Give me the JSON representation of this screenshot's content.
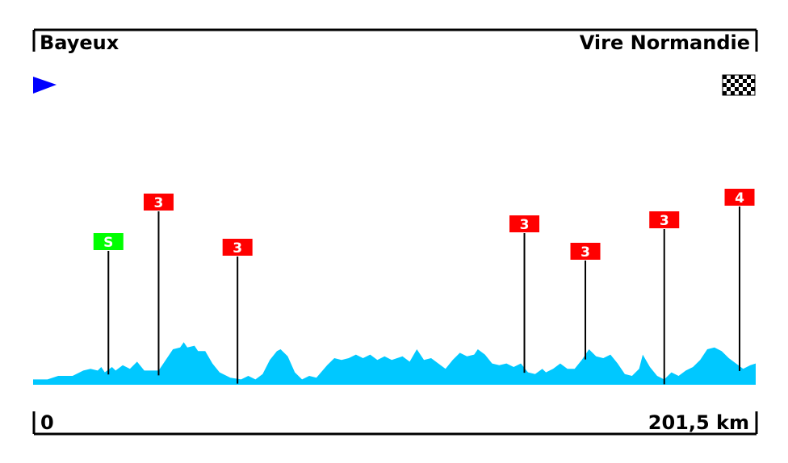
{
  "header": {
    "start_city": "Bayeux",
    "finish_city": "Vire Normandie"
  },
  "footer": {
    "start_km": "0",
    "end_km": "201,5 km"
  },
  "icons": {
    "start": "start-flag-icon",
    "finish": "checkered-flag-icon"
  },
  "colors": {
    "profile_fill": "#00c8ff",
    "climb_badge": "#ff0000",
    "sprint_badge": "#00ff00",
    "start_flag": "#0000ff"
  },
  "chart_data": {
    "type": "area",
    "xlim": [
      0,
      201.5
    ],
    "distance_km": 201.5,
    "profile": [
      [
        0,
        0.03
      ],
      [
        4,
        0.03
      ],
      [
        7,
        0.05
      ],
      [
        11,
        0.05
      ],
      [
        14,
        0.08
      ],
      [
        16,
        0.09
      ],
      [
        18,
        0.08
      ],
      [
        19,
        0.1
      ],
      [
        20,
        0.07
      ],
      [
        22,
        0.1
      ],
      [
        23,
        0.08
      ],
      [
        25,
        0.11
      ],
      [
        27,
        0.09
      ],
      [
        29,
        0.13
      ],
      [
        31,
        0.08
      ],
      [
        33,
        0.08
      ],
      [
        35,
        0.08
      ],
      [
        37,
        0.14
      ],
      [
        39,
        0.2
      ],
      [
        41,
        0.21
      ],
      [
        42,
        0.24
      ],
      [
        43,
        0.21
      ],
      [
        45,
        0.22
      ],
      [
        46,
        0.19
      ],
      [
        48,
        0.19
      ],
      [
        50,
        0.12
      ],
      [
        52,
        0.07
      ],
      [
        55,
        0.04
      ],
      [
        58,
        0.03
      ],
      [
        60,
        0.05
      ],
      [
        62,
        0.03
      ],
      [
        64,
        0.06
      ],
      [
        66,
        0.14
      ],
      [
        68,
        0.19
      ],
      [
        69,
        0.2
      ],
      [
        71,
        0.16
      ],
      [
        73,
        0.07
      ],
      [
        75,
        0.03
      ],
      [
        77,
        0.05
      ],
      [
        79,
        0.04
      ],
      [
        82,
        0.11
      ],
      [
        84,
        0.15
      ],
      [
        86,
        0.14
      ],
      [
        88,
        0.15
      ],
      [
        90,
        0.17
      ],
      [
        92,
        0.15
      ],
      [
        94,
        0.17
      ],
      [
        96,
        0.14
      ],
      [
        98,
        0.16
      ],
      [
        100,
        0.14
      ],
      [
        103,
        0.16
      ],
      [
        105,
        0.13
      ],
      [
        107,
        0.2
      ],
      [
        109,
        0.14
      ],
      [
        111,
        0.15
      ],
      [
        113,
        0.12
      ],
      [
        115,
        0.09
      ],
      [
        117,
        0.14
      ],
      [
        119,
        0.18
      ],
      [
        121,
        0.16
      ],
      [
        123,
        0.17
      ],
      [
        124,
        0.2
      ],
      [
        126,
        0.17
      ],
      [
        128,
        0.12
      ],
      [
        130,
        0.11
      ],
      [
        132,
        0.12
      ],
      [
        134,
        0.1
      ],
      [
        136,
        0.12
      ],
      [
        138,
        0.07
      ],
      [
        140,
        0.06
      ],
      [
        142,
        0.09
      ],
      [
        143,
        0.07
      ],
      [
        145,
        0.09
      ],
      [
        147,
        0.12
      ],
      [
        149,
        0.09
      ],
      [
        151,
        0.09
      ],
      [
        153,
        0.14
      ],
      [
        155,
        0.2
      ],
      [
        157,
        0.16
      ],
      [
        159,
        0.15
      ],
      [
        161,
        0.17
      ],
      [
        163,
        0.12
      ],
      [
        165,
        0.06
      ],
      [
        167,
        0.05
      ],
      [
        169,
        0.09
      ],
      [
        170,
        0.17
      ],
      [
        172,
        0.1
      ],
      [
        174,
        0.05
      ],
      [
        176,
        0.03
      ],
      [
        178,
        0.07
      ],
      [
        180,
        0.05
      ],
      [
        182,
        0.08
      ],
      [
        184,
        0.1
      ],
      [
        186,
        0.14
      ],
      [
        188,
        0.2
      ],
      [
        190,
        0.21
      ],
      [
        192,
        0.19
      ],
      [
        194,
        0.15
      ],
      [
        196,
        0.12
      ],
      [
        198,
        0.09
      ],
      [
        199,
        0.1
      ],
      [
        200,
        0.11
      ],
      [
        201.5,
        0.12
      ]
    ],
    "markers": [
      {
        "type": "sprint",
        "label": "S",
        "km": 21
      },
      {
        "type": "climb",
        "label": "3",
        "km": 35
      },
      {
        "type": "climb",
        "label": "3",
        "km": 57
      },
      {
        "type": "climb",
        "label": "3",
        "km": 137
      },
      {
        "type": "climb",
        "label": "3",
        "km": 154
      },
      {
        "type": "climb",
        "label": "3",
        "km": 176
      },
      {
        "type": "climb",
        "label": "4",
        "km": 197
      }
    ]
  }
}
